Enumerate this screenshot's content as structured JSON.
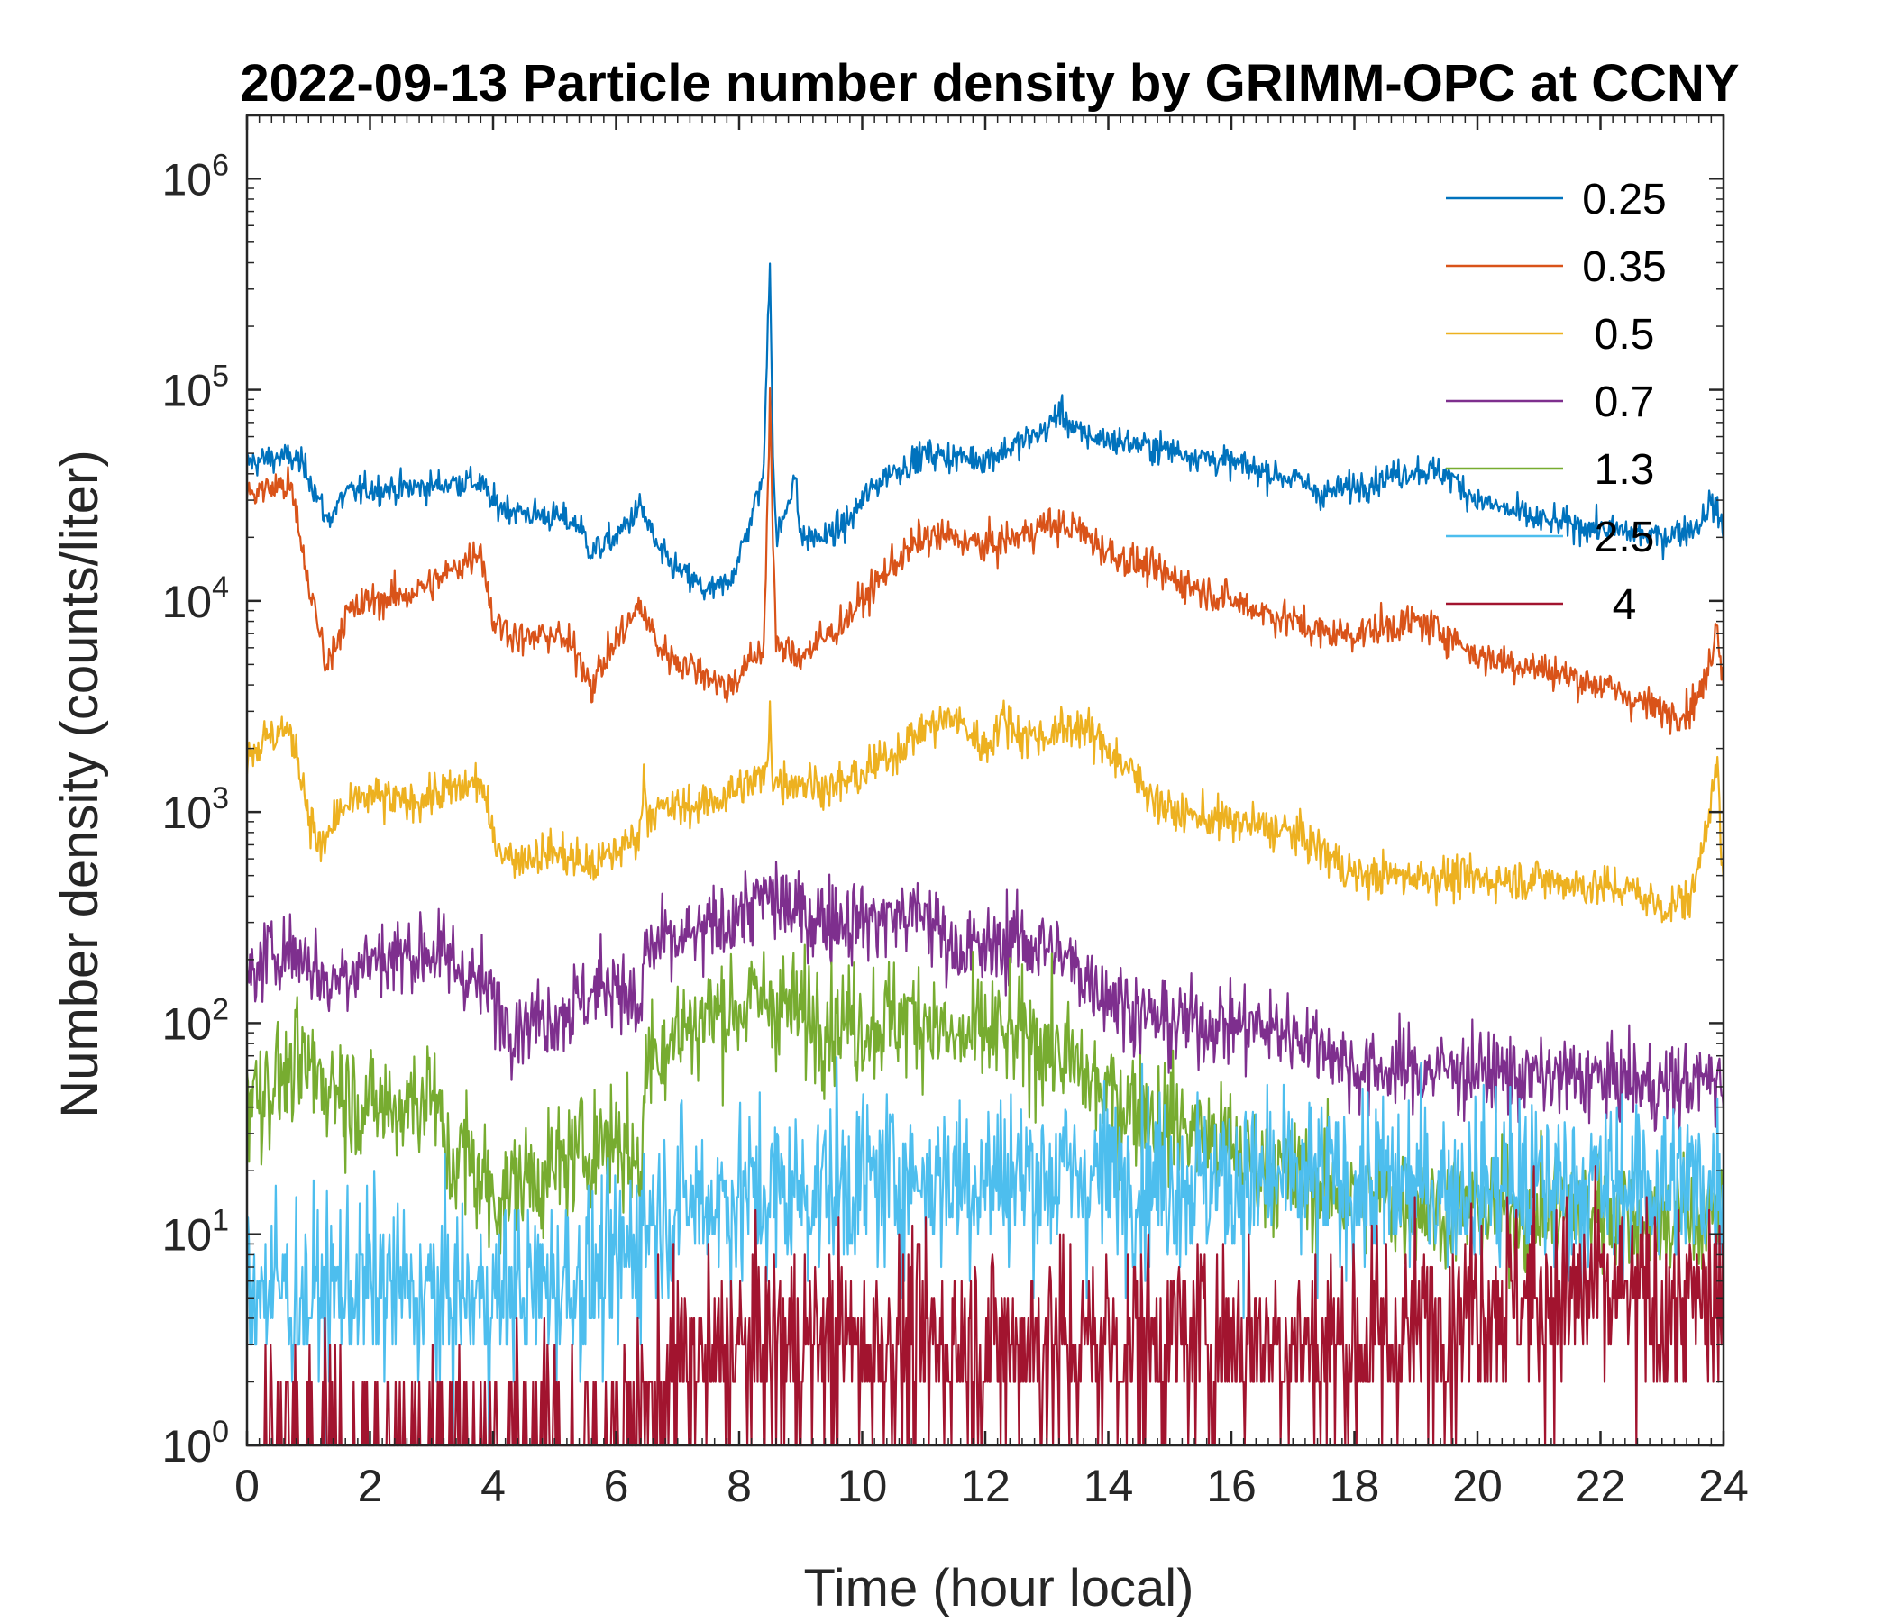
{
  "chart_data": {
    "type": "line",
    "title": "2022-09-13 Particle number density by GRIMM-OPC at CCNY",
    "xlabel": "Time (hour local)",
    "ylabel": "Number density (counts/liter)",
    "xlim": [
      0,
      24
    ],
    "ylim_log10": [
      0,
      6.3
    ],
    "yscale": "log",
    "x_ticks": [
      0,
      2,
      4,
      6,
      8,
      10,
      12,
      14,
      16,
      18,
      20,
      22,
      24
    ],
    "x_tick_labels": [
      "0",
      "2",
      "4",
      "6",
      "8",
      "10",
      "12",
      "14",
      "16",
      "18",
      "20",
      "22",
      "24"
    ],
    "y_ticks": [
      {
        "base": "10",
        "exp": "0",
        "value": 1
      },
      {
        "base": "10",
        "exp": "1",
        "value": 10
      },
      {
        "base": "10",
        "exp": "2",
        "value": 100
      },
      {
        "base": "10",
        "exp": "3",
        "value": 1000
      },
      {
        "base": "10",
        "exp": "4",
        "value": 10000
      },
      {
        "base": "10",
        "exp": "5",
        "value": 100000
      },
      {
        "base": "10",
        "exp": "6",
        "value": 1000000
      }
    ],
    "legend_location": "top-right",
    "series": [
      {
        "name": "0.25",
        "color": "#0072BD",
        "noise": 0.05,
        "x": [
          0,
          0.5,
          0.8,
          1.0,
          1.3,
          1.6,
          2.0,
          2.5,
          3.0,
          3.5,
          3.8,
          4.0,
          4.5,
          5.0,
          5.4,
          5.6,
          6.0,
          6.4,
          6.7,
          7.0,
          7.5,
          7.8,
          8.0,
          8.2,
          8.4,
          8.45,
          8.5,
          8.55,
          8.6,
          8.7,
          8.9,
          9.0,
          9.4,
          9.8,
          10.0,
          10.4,
          10.8,
          11.0,
          11.5,
          12.0,
          12.5,
          13.0,
          13.2,
          13.5,
          14.0,
          15.0,
          16.0,
          17.0,
          17.5,
          18.0,
          19.0,
          19.5,
          20.0,
          21.0,
          22.0,
          23.0,
          23.6,
          23.8,
          24.0
        ],
        "y": [
          45000,
          48000,
          47000,
          40000,
          24000,
          32000,
          34000,
          34000,
          35000,
          37000,
          36000,
          29000,
          26000,
          25000,
          23000,
          17000,
          20000,
          28000,
          17000,
          14000,
          11000,
          12000,
          16000,
          25000,
          40000,
          150000,
          430000,
          50000,
          20000,
          23000,
          40000,
          20000,
          20000,
          24000,
          30000,
          40000,
          45000,
          50000,
          48000,
          47000,
          55000,
          65000,
          80000,
          62000,
          58000,
          52000,
          45000,
          38000,
          32000,
          35000,
          42000,
          40000,
          30000,
          24000,
          22000,
          20000,
          23000,
          30000,
          22000
        ]
      },
      {
        "name": "0.35",
        "color": "#D95319",
        "noise": 0.06,
        "x": [
          0,
          0.5,
          0.7,
          0.8,
          1.0,
          1.3,
          1.6,
          2.0,
          2.5,
          3.0,
          3.5,
          3.8,
          4.0,
          4.5,
          5.0,
          5.4,
          5.6,
          6.0,
          6.4,
          6.7,
          7.0,
          7.5,
          7.8,
          8.0,
          8.4,
          8.5,
          8.55,
          8.6,
          9.0,
          9.5,
          10.0,
          10.5,
          11.0,
          11.5,
          12.0,
          12.5,
          13.0,
          13.5,
          14.0,
          15.0,
          16.0,
          17.0,
          17.5,
          18.0,
          19.0,
          19.5,
          20.0,
          21.0,
          22.0,
          23.0,
          23.4,
          23.7,
          23.9,
          24.0
        ],
        "y": [
          32000,
          35000,
          35000,
          25000,
          12000,
          5000,
          8500,
          10000,
          10500,
          12000,
          15000,
          18000,
          8000,
          6500,
          7000,
          5500,
          4000,
          6500,
          9500,
          6000,
          5200,
          4500,
          3800,
          4500,
          6000,
          90000,
          20000,
          6000,
          5500,
          7000,
          10000,
          15000,
          20000,
          20000,
          18000,
          20000,
          23000,
          22000,
          17000,
          13000,
          10000,
          8000,
          7000,
          7000,
          8000,
          7000,
          5500,
          4800,
          4000,
          3000,
          3000,
          4000,
          8000,
          4000
        ]
      },
      {
        "name": "0.5",
        "color": "#EDB120",
        "noise": 0.07,
        "x": [
          0,
          0.6,
          0.8,
          1.0,
          1.2,
          1.5,
          2.0,
          2.5,
          3.0,
          3.5,
          3.8,
          4.0,
          4.3,
          5.0,
          5.6,
          6.0,
          6.4,
          6.45,
          6.5,
          7.0,
          7.5,
          8.0,
          8.45,
          8.5,
          8.55,
          9.0,
          9.5,
          10.0,
          10.5,
          11.0,
          11.5,
          12.0,
          12.3,
          12.6,
          13.0,
          13.5,
          14.0,
          14.5,
          15.0,
          16.0,
          17.0,
          17.5,
          18.0,
          19.0,
          20.0,
          21.0,
          22.0,
          22.5,
          23.0,
          23.5,
          23.8,
          23.9,
          24.0
        ],
        "y": [
          1900,
          2500,
          2000,
          1000,
          650,
          1000,
          1200,
          1100,
          1200,
          1300,
          1400,
          750,
          600,
          650,
          550,
          650,
          800,
          1600,
          1000,
          1050,
          1100,
          1300,
          1500,
          3200,
          1400,
          1400,
          1300,
          1500,
          1900,
          2500,
          2800,
          2000,
          2800,
          2300,
          2300,
          2600,
          2000,
          1400,
          1000,
          900,
          800,
          650,
          500,
          500,
          480,
          480,
          440,
          430,
          350,
          400,
          1200,
          1600,
          400
        ]
      },
      {
        "name": "0.7",
        "color": "#7E2F8E",
        "noise": 0.14,
        "x": [
          0,
          0.5,
          1.0,
          1.3,
          1.6,
          2.0,
          3.0,
          3.5,
          4.0,
          4.3,
          5.0,
          5.5,
          6.0,
          6.4,
          6.45,
          7.0,
          7.5,
          8.0,
          8.5,
          9.0,
          10.0,
          11.0,
          11.5,
          12.0,
          12.5,
          13.0,
          13.5,
          14.0,
          14.5,
          15.0,
          16.0,
          17.0,
          17.5,
          18.0,
          19.0,
          20.0,
          21.0,
          22.0,
          23.0,
          24.0
        ],
        "y": [
          160,
          230,
          200,
          150,
          180,
          200,
          220,
          180,
          130,
          100,
          110,
          130,
          170,
          100,
          220,
          240,
          270,
          330,
          400,
          320,
          310,
          330,
          230,
          220,
          250,
          230,
          180,
          140,
          110,
          100,
          100,
          90,
          80,
          60,
          60,
          60,
          55,
          55,
          50,
          55
        ]
      },
      {
        "name": "1.3",
        "color": "#77AC30",
        "noise": 0.2,
        "x": [
          0,
          0.5,
          1.0,
          1.5,
          2.0,
          2.5,
          3.0,
          3.3,
          3.5,
          4.0,
          4.5,
          5.0,
          5.5,
          6.0,
          6.4,
          6.5,
          7.0,
          7.5,
          8.0,
          8.5,
          9.0,
          10.0,
          11.0,
          11.5,
          12.0,
          13.0,
          13.5,
          14.0,
          14.5,
          15.0,
          16.0,
          17.0,
          18.0,
          19.0,
          20.0,
          21.0,
          22.0,
          23.0,
          24.0
        ],
        "y": [
          45,
          55,
          60,
          50,
          40,
          40,
          50,
          20,
          25,
          15,
          18,
          20,
          25,
          30,
          20,
          70,
          90,
          110,
          120,
          130,
          110,
          100,
          110,
          80,
          90,
          80,
          60,
          45,
          40,
          35,
          25,
          18,
          15,
          14,
          13,
          13,
          13,
          12,
          12
        ]
      },
      {
        "name": "2.5",
        "color": "#4DBEEE",
        "noise": 0.3,
        "x": [
          0,
          1.0,
          2.0,
          3.0,
          4.0,
          5.0,
          5.5,
          6.0,
          6.5,
          7.0,
          8.0,
          9.0,
          10.0,
          12.0,
          14.0,
          16.0,
          18.0,
          20.0,
          22.0,
          24.0
        ],
        "y": [
          6,
          5,
          6,
          5,
          5,
          6,
          6,
          7,
          12,
          14,
          15,
          16,
          18,
          19,
          19,
          18,
          17,
          17,
          17,
          17
        ]
      },
      {
        "name": "4",
        "color": "#A2142F",
        "noise": 0.35,
        "x": [
          0,
          1.0,
          2.0,
          3.0,
          4.0,
          5.0,
          6.0,
          6.5,
          7.0,
          8.0,
          9.0,
          10.0,
          12.0,
          14.0,
          16.0,
          18.0,
          19.0,
          20.0,
          21.0,
          22.0,
          23.0,
          24.0
        ],
        "y": [
          1,
          1,
          1,
          1,
          1,
          1,
          1,
          1.5,
          2.2,
          2.7,
          3,
          3,
          3,
          3,
          3.2,
          3,
          3.5,
          5,
          5,
          5,
          4.5,
          4.5
        ]
      }
    ]
  }
}
